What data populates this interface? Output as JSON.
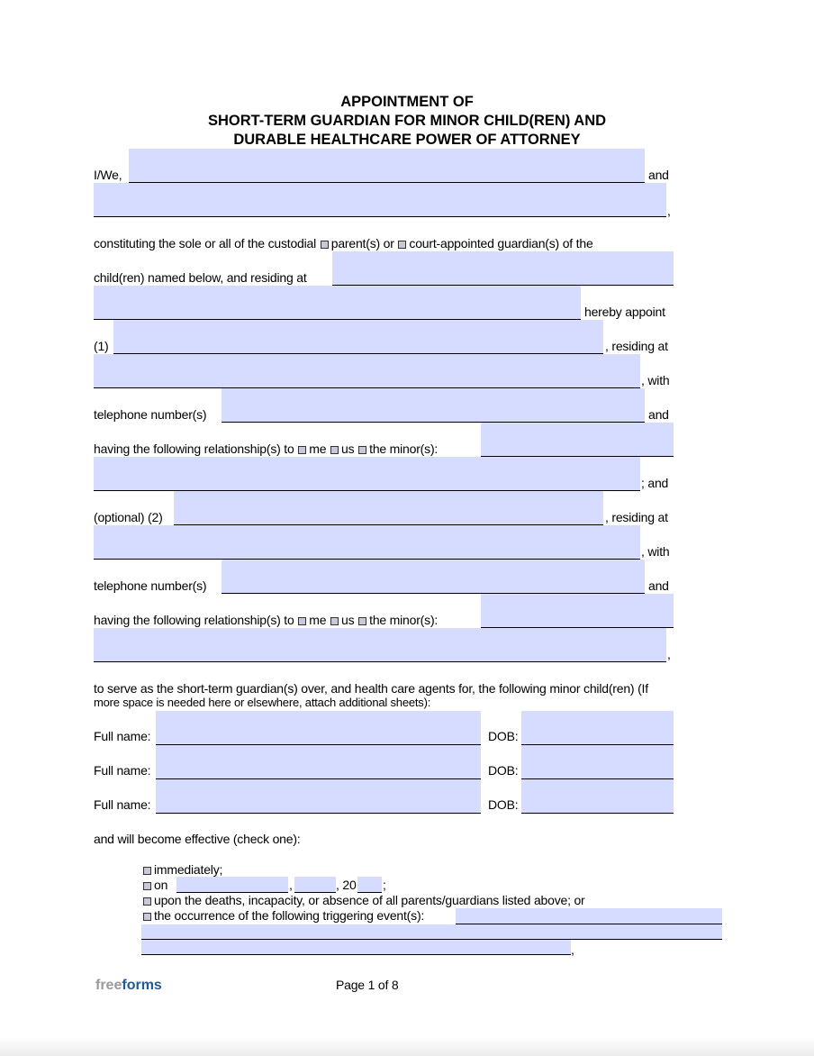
{
  "title": [
    "APPOINTMENT OF",
    "SHORT-TERM GUARDIAN FOR MINOR CHILD(REN) AND",
    "DURABLE HEALTHCARE POWER OF ATTORNEY"
  ],
  "text": {
    "iwe": "I/We,",
    "and": "and",
    "comma": ",",
    "constituting_a": "constituting the sole or all of the custodial",
    "parents": "parent(s) or",
    "guardians": "court-appointed guardian(s) of the",
    "children_named": "child(ren) named below, and residing at",
    "hereby_appoint": "hereby appoint",
    "one": "(1)",
    "residing_at": ", residing at",
    "with": ", with",
    "telephone": "telephone number(s)",
    "relationship": "having the following relationship(s) to",
    "me": "me",
    "us": "us",
    "minors": "the minor(s):",
    "semi_and": "; and",
    "optional_two": "(optional) (2)",
    "serve_1": "to serve as the short-term guardian(s) over, and health care agents for, the following minor child(ren) (If",
    "serve_2": "more space is needed here or elsewhere, attach additional sheets):",
    "full_name": "Full name:",
    "dob": "DOB:",
    "effective": "and will become effective (check one):",
    "immediately": "immediately;",
    "on": "on",
    "twenty": ", 20",
    "semi": ";",
    "upon": "upon the deaths, incapacity, or absence of all parents/guardians listed above; or",
    "trigger": "the occurrence of the following triggering event(s):"
  },
  "footer": {
    "logo_a": "free",
    "logo_b": "forms",
    "page": "Page 1 of 8"
  },
  "colors": {
    "field": "#d6dcff",
    "logo_gray": "#9a9a9a",
    "logo_blue": "#1f5b9a"
  }
}
